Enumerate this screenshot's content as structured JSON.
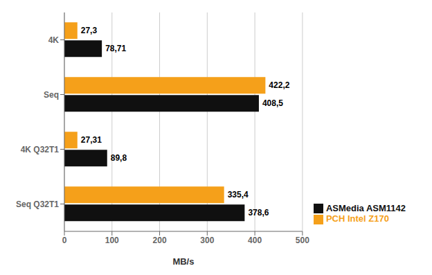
{
  "chart_data": {
    "type": "bar",
    "orientation": "horizontal",
    "categories": [
      "4K",
      "Seq",
      "4K Q32T1",
      "Seq Q32T1"
    ],
    "series": [
      {
        "name": "PCH Intel Z170",
        "color": "#F5A01A",
        "values": [
          27.3,
          422.2,
          27.31,
          335.4
        ],
        "value_labels": [
          "27,3",
          "422,2",
          "27,31",
          "335,4"
        ]
      },
      {
        "name": "ASMedia ASM1142",
        "color": "#101010",
        "values": [
          78.71,
          408.5,
          89.8,
          378.6
        ],
        "value_labels": [
          "78,71",
          "408,5",
          "89,8",
          "378,6"
        ]
      }
    ],
    "xlabel": "MB/s",
    "xlim": [
      0,
      500
    ],
    "xticks": [
      0,
      100,
      200,
      300,
      400,
      500
    ],
    "grid": true,
    "legend": "lower right",
    "data_labels": true
  }
}
